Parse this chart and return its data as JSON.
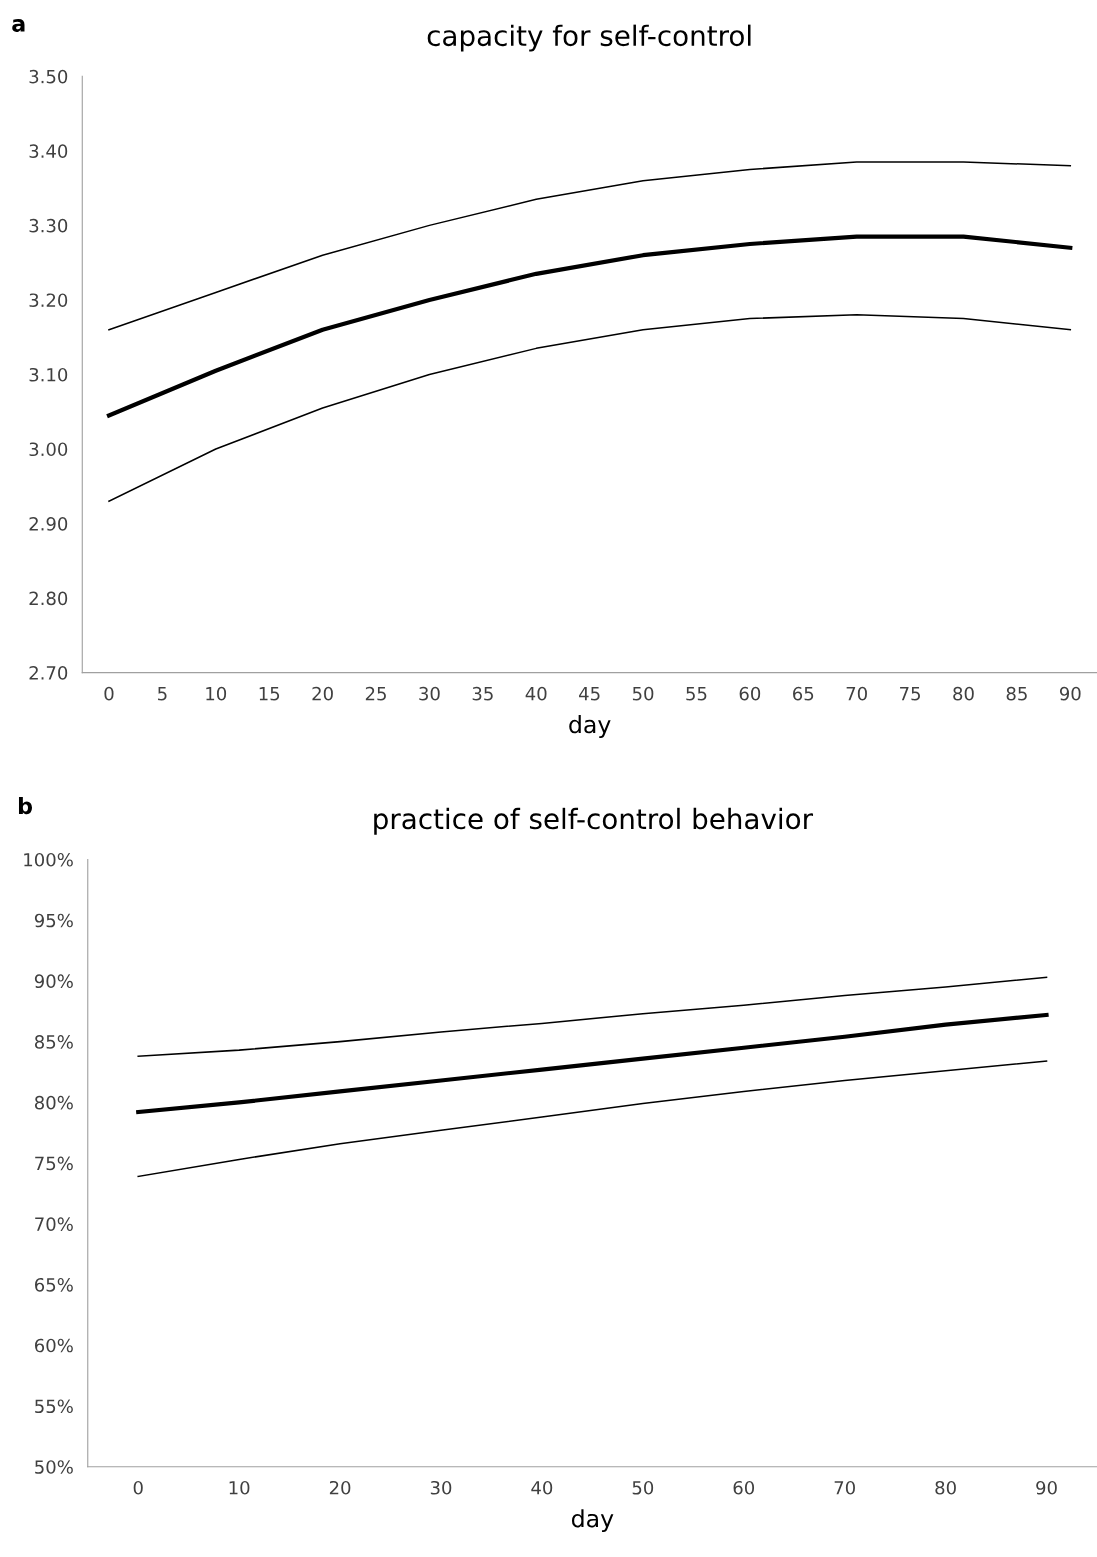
{
  "chart_data": [
    {
      "type": "line",
      "title": "capacity for self-control",
      "xlabel": "day",
      "annotations": [
        "a"
      ],
      "x": [
        0,
        10,
        20,
        30,
        40,
        50,
        60,
        70,
        80,
        90
      ],
      "series": [
        {
          "color": "#000000",
          "values": [
            3.045,
            3.105,
            3.16,
            3.2,
            3.235,
            3.26,
            3.275,
            3.285,
            3.285,
            3.27
          ]
        },
        {
          "color": "#000000",
          "values": [
            2.93,
            3.0,
            3.055,
            3.1,
            3.135,
            3.16,
            3.175,
            3.18,
            3.175,
            3.16
          ]
        },
        {
          "color": "#000000",
          "values": [
            3.16,
            3.21,
            3.26,
            3.3,
            3.335,
            3.36,
            3.375,
            3.385,
            3.385,
            3.38
          ]
        }
      ],
      "xlim": [
        -2.5,
        92.5
      ],
      "xticks": [
        0,
        5,
        10,
        15,
        20,
        25,
        30,
        35,
        40,
        45,
        50,
        55,
        60,
        65,
        70,
        75,
        80,
        85,
        90
      ],
      "ylim": [
        2.7,
        3.5
      ],
      "yticks": [
        {
          "value": 2.7,
          "label": "2.70"
        },
        {
          "value": 2.8,
          "label": "2.80"
        },
        {
          "value": 2.9,
          "label": "2.90"
        },
        {
          "value": 3.0,
          "label": "3.00"
        },
        {
          "value": 3.1,
          "label": "3.10"
        },
        {
          "value": 3.2,
          "label": "3.20"
        },
        {
          "value": 3.3,
          "label": "3.30"
        },
        {
          "value": 3.4,
          "label": "3.40"
        },
        {
          "value": 3.5,
          "label": "3.50"
        }
      ],
      "grid": false,
      "marker": "none",
      "line_style": "solid"
    },
    {
      "type": "line",
      "title": "practice of self-control behavior",
      "xlabel": "day",
      "annotations": [
        "b"
      ],
      "x": [
        0,
        10,
        20,
        30,
        40,
        50,
        60,
        70,
        80,
        90
      ],
      "series": [
        {
          "color": "#000000",
          "values": [
            79.2,
            80.0,
            80.9,
            81.8,
            82.7,
            83.6,
            84.5,
            85.4,
            86.4,
            87.2
          ]
        },
        {
          "color": "#000000",
          "values": [
            73.9,
            75.3,
            76.6,
            77.7,
            78.8,
            79.9,
            80.9,
            81.8,
            82.6,
            83.4
          ]
        },
        {
          "color": "#000000",
          "values": [
            83.8,
            84.3,
            85.0,
            85.8,
            86.5,
            87.3,
            88.0,
            88.8,
            89.5,
            90.3
          ]
        }
      ],
      "xlim": [
        -5,
        95
      ],
      "xticks": [
        0,
        10,
        20,
        30,
        40,
        50,
        60,
        70,
        80,
        90
      ],
      "ylim": [
        50,
        100
      ],
      "yticks": [
        {
          "value": 50,
          "label": "50%"
        },
        {
          "value": 55,
          "label": "55%"
        },
        {
          "value": 60,
          "label": "60%"
        },
        {
          "value": 65,
          "label": "65%"
        },
        {
          "value": 70,
          "label": "70%"
        },
        {
          "value": 75,
          "label": "75%"
        },
        {
          "value": 80,
          "label": "80%"
        },
        {
          "value": 85,
          "label": "85%"
        },
        {
          "value": 90,
          "label": "90%"
        },
        {
          "value": 95,
          "label": "95%"
        },
        {
          "value": 100,
          "label": "100%"
        }
      ],
      "grid": false,
      "marker": "none",
      "line_style": "solid"
    }
  ]
}
